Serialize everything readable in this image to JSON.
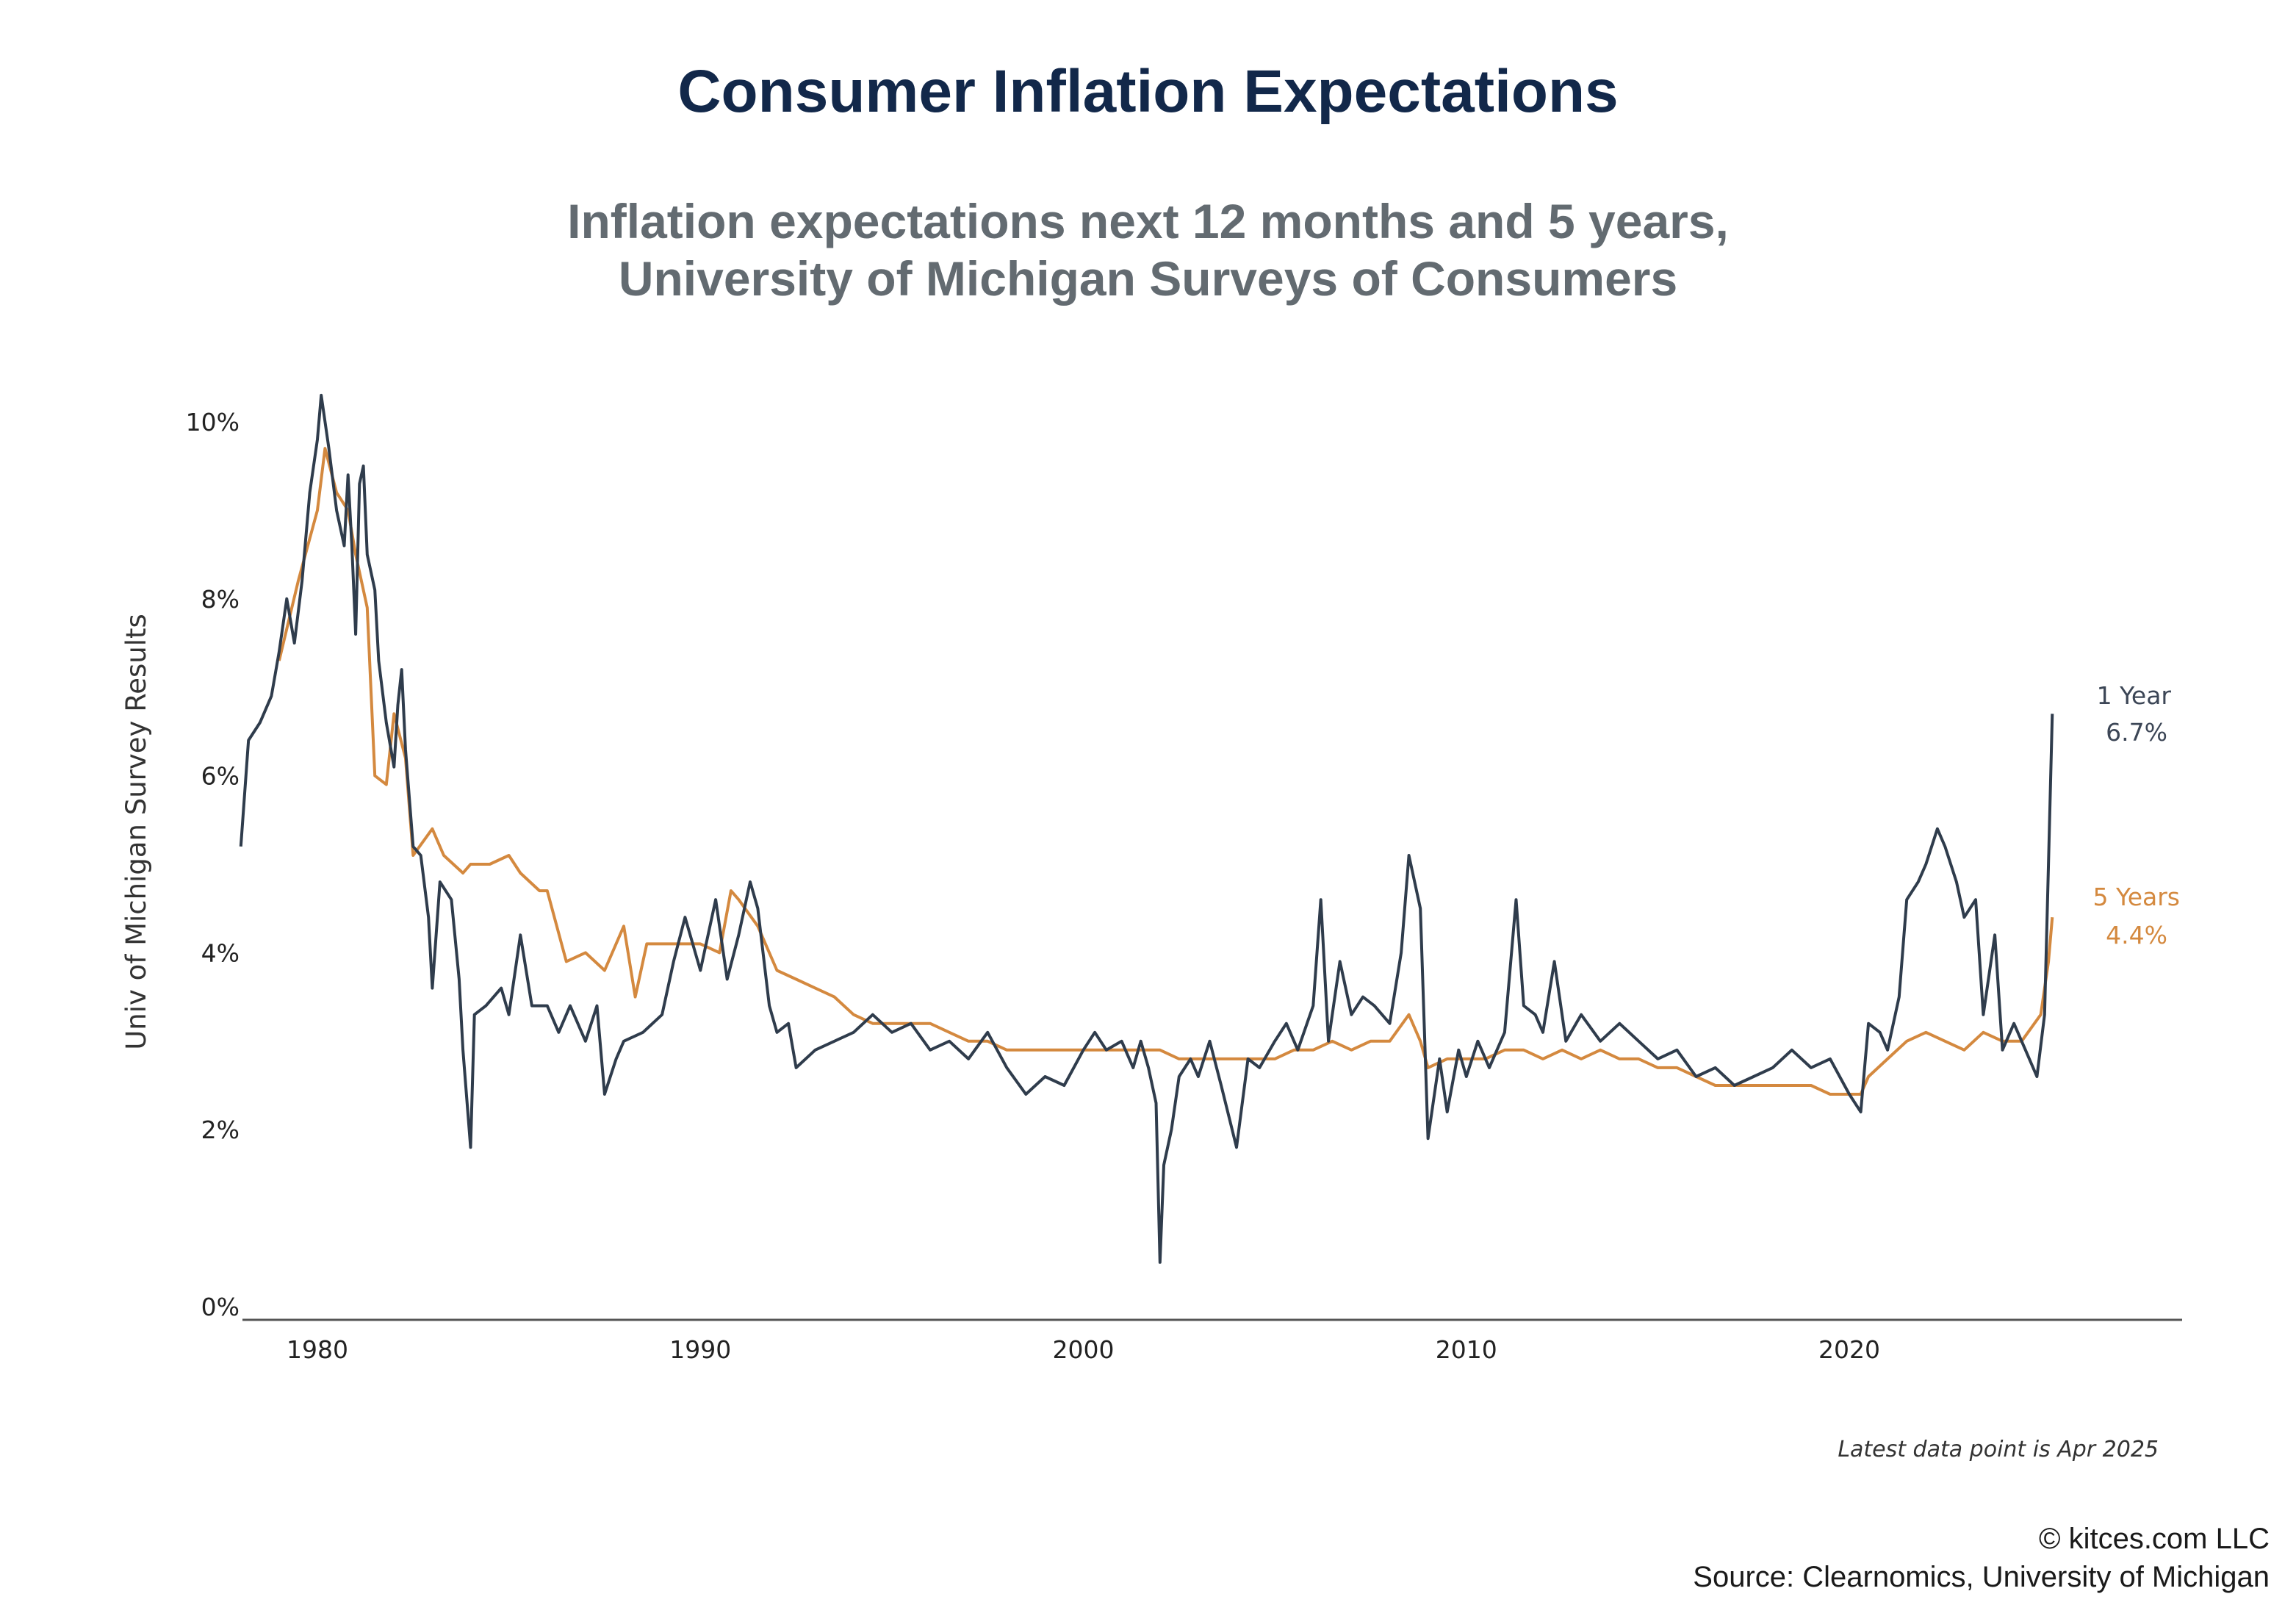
{
  "header": {
    "title": "Consumer Inflation Expectations",
    "subtitle_line1": "Inflation expectations next 12 months and 5 years,",
    "subtitle_line2": "University of Michigan Surveys of Consumers"
  },
  "footer": {
    "copyright": "© kitces.com LLC",
    "source": "Source: Clearnomics, University of Michigan"
  },
  "chart_data": {
    "type": "line",
    "title": "Consumer Inflation Expectations",
    "ylabel": "Univ of Michigan Survey Results",
    "xlabel": "",
    "x_ticks": [
      "1980",
      "1990",
      "2000",
      "2010",
      "2020"
    ],
    "y_ticks": [
      "0%",
      "2%",
      "4%",
      "6%",
      "8%",
      "10%"
    ],
    "xlim": [
      1978,
      2029
    ],
    "ylim": [
      0,
      10.4
    ],
    "grid": false,
    "note": "Latest data point is Apr 2025",
    "colors": {
      "one_year": "#2f3c4c",
      "five_years": "#d4893f"
    },
    "series": [
      {
        "key": "one_year",
        "end_label_1": "1 Year",
        "end_label_2": "6.7%",
        "points": [
          [
            1978.0,
            5.2
          ],
          [
            1978.2,
            6.4
          ],
          [
            1978.5,
            6.6
          ],
          [
            1978.8,
            6.9
          ],
          [
            1979.0,
            7.4
          ],
          [
            1979.2,
            8.0
          ],
          [
            1979.4,
            7.5
          ],
          [
            1979.6,
            8.2
          ],
          [
            1979.8,
            9.2
          ],
          [
            1980.0,
            9.8
          ],
          [
            1980.1,
            10.3
          ],
          [
            1980.3,
            9.7
          ],
          [
            1980.5,
            9.0
          ],
          [
            1980.7,
            8.6
          ],
          [
            1980.8,
            9.4
          ],
          [
            1980.9,
            8.6
          ],
          [
            1981.0,
            7.6
          ],
          [
            1981.1,
            9.3
          ],
          [
            1981.2,
            9.5
          ],
          [
            1981.3,
            8.5
          ],
          [
            1981.5,
            8.1
          ],
          [
            1981.6,
            7.3
          ],
          [
            1981.8,
            6.6
          ],
          [
            1982.0,
            6.1
          ],
          [
            1982.1,
            6.8
          ],
          [
            1982.2,
            7.2
          ],
          [
            1982.3,
            6.3
          ],
          [
            1982.5,
            5.2
          ],
          [
            1982.7,
            5.1
          ],
          [
            1982.9,
            4.4
          ],
          [
            1983.0,
            3.6
          ],
          [
            1983.2,
            4.8
          ],
          [
            1983.5,
            4.6
          ],
          [
            1983.7,
            3.7
          ],
          [
            1983.8,
            2.9
          ],
          [
            1984.0,
            1.8
          ],
          [
            1984.1,
            3.3
          ],
          [
            1984.4,
            3.4
          ],
          [
            1984.8,
            3.6
          ],
          [
            1985.0,
            3.3
          ],
          [
            1985.3,
            4.2
          ],
          [
            1985.6,
            3.4
          ],
          [
            1986.0,
            3.4
          ],
          [
            1986.3,
            3.1
          ],
          [
            1986.6,
            3.4
          ],
          [
            1987.0,
            3.0
          ],
          [
            1987.3,
            3.4
          ],
          [
            1987.5,
            2.4
          ],
          [
            1987.8,
            2.8
          ],
          [
            1988.0,
            3.0
          ],
          [
            1988.5,
            3.1
          ],
          [
            1989.0,
            3.3
          ],
          [
            1989.3,
            3.9
          ],
          [
            1989.6,
            4.4
          ],
          [
            1990.0,
            3.8
          ],
          [
            1990.4,
            4.6
          ],
          [
            1990.7,
            3.7
          ],
          [
            1991.0,
            4.2
          ],
          [
            1991.3,
            4.8
          ],
          [
            1991.5,
            4.5
          ],
          [
            1991.8,
            3.4
          ],
          [
            1992.0,
            3.1
          ],
          [
            1992.3,
            3.2
          ],
          [
            1992.5,
            2.7
          ],
          [
            1993.0,
            2.9
          ],
          [
            1993.5,
            3.0
          ],
          [
            1994.0,
            3.1
          ],
          [
            1994.5,
            3.3
          ],
          [
            1995.0,
            3.1
          ],
          [
            1995.5,
            3.2
          ],
          [
            1996.0,
            2.9
          ],
          [
            1996.5,
            3.0
          ],
          [
            1997.0,
            2.8
          ],
          [
            1997.5,
            3.1
          ],
          [
            1998.0,
            2.7
          ],
          [
            1998.5,
            2.4
          ],
          [
            1999.0,
            2.6
          ],
          [
            1999.5,
            2.5
          ],
          [
            2000.0,
            2.9
          ],
          [
            2000.3,
            3.1
          ],
          [
            2000.6,
            2.9
          ],
          [
            2001.0,
            3.0
          ],
          [
            2001.3,
            2.7
          ],
          [
            2001.5,
            3.0
          ],
          [
            2001.7,
            2.7
          ],
          [
            2001.9,
            2.3
          ],
          [
            2002.0,
            0.5
          ],
          [
            2002.1,
            1.6
          ],
          [
            2002.3,
            2.0
          ],
          [
            2002.5,
            2.6
          ],
          [
            2002.8,
            2.8
          ],
          [
            2003.0,
            2.6
          ],
          [
            2003.3,
            3.0
          ],
          [
            2003.6,
            2.5
          ],
          [
            2004.0,
            1.8
          ],
          [
            2004.3,
            2.8
          ],
          [
            2004.6,
            2.7
          ],
          [
            2005.0,
            3.0
          ],
          [
            2005.3,
            3.2
          ],
          [
            2005.6,
            2.9
          ],
          [
            2006.0,
            3.4
          ],
          [
            2006.2,
            4.6
          ],
          [
            2006.4,
            3.0
          ],
          [
            2006.7,
            3.9
          ],
          [
            2007.0,
            3.3
          ],
          [
            2007.3,
            3.5
          ],
          [
            2007.6,
            3.4
          ],
          [
            2008.0,
            3.2
          ],
          [
            2008.3,
            4.0
          ],
          [
            2008.5,
            5.1
          ],
          [
            2008.8,
            4.5
          ],
          [
            2009.0,
            1.9
          ],
          [
            2009.3,
            2.8
          ],
          [
            2009.5,
            2.2
          ],
          [
            2009.8,
            2.9
          ],
          [
            2010.0,
            2.6
          ],
          [
            2010.3,
            3.0
          ],
          [
            2010.6,
            2.7
          ],
          [
            2011.0,
            3.1
          ],
          [
            2011.3,
            4.6
          ],
          [
            2011.5,
            3.4
          ],
          [
            2011.8,
            3.3
          ],
          [
            2012.0,
            3.1
          ],
          [
            2012.3,
            3.9
          ],
          [
            2012.6,
            3.0
          ],
          [
            2013.0,
            3.3
          ],
          [
            2013.5,
            3.0
          ],
          [
            2014.0,
            3.2
          ],
          [
            2014.5,
            3.0
          ],
          [
            2015.0,
            2.8
          ],
          [
            2015.5,
            2.9
          ],
          [
            2016.0,
            2.6
          ],
          [
            2016.5,
            2.7
          ],
          [
            2017.0,
            2.5
          ],
          [
            2017.5,
            2.6
          ],
          [
            2018.0,
            2.7
          ],
          [
            2018.5,
            2.9
          ],
          [
            2019.0,
            2.7
          ],
          [
            2019.5,
            2.8
          ],
          [
            2020.0,
            2.4
          ],
          [
            2020.3,
            2.2
          ],
          [
            2020.5,
            3.2
          ],
          [
            2020.8,
            3.1
          ],
          [
            2021.0,
            2.9
          ],
          [
            2021.3,
            3.5
          ],
          [
            2021.5,
            4.6
          ],
          [
            2021.8,
            4.8
          ],
          [
            2022.0,
            5.0
          ],
          [
            2022.3,
            5.4
          ],
          [
            2022.5,
            5.2
          ],
          [
            2022.8,
            4.8
          ],
          [
            2023.0,
            4.4
          ],
          [
            2023.3,
            4.6
          ],
          [
            2023.5,
            3.3
          ],
          [
            2023.8,
            4.2
          ],
          [
            2024.0,
            2.9
          ],
          [
            2024.3,
            3.2
          ],
          [
            2024.6,
            2.9
          ],
          [
            2024.9,
            2.6
          ],
          [
            2025.1,
            3.3
          ],
          [
            2025.2,
            5.0
          ],
          [
            2025.3,
            6.7
          ]
        ]
      },
      {
        "key": "five_years",
        "end_label_1": "5 Years",
        "end_label_2": "4.4%",
        "points": [
          [
            1979.0,
            7.3
          ],
          [
            1979.5,
            8.2
          ],
          [
            1980.0,
            9.0
          ],
          [
            1980.2,
            9.7
          ],
          [
            1980.5,
            9.2
          ],
          [
            1980.8,
            9.0
          ],
          [
            1981.0,
            8.5
          ],
          [
            1981.3,
            7.9
          ],
          [
            1981.5,
            6.0
          ],
          [
            1981.8,
            5.9
          ],
          [
            1982.0,
            6.7
          ],
          [
            1982.3,
            6.2
          ],
          [
            1982.5,
            5.1
          ],
          [
            1983.0,
            5.4
          ],
          [
            1983.3,
            5.1
          ],
          [
            1983.8,
            4.9
          ],
          [
            1984.0,
            5.0
          ],
          [
            1984.5,
            5.0
          ],
          [
            1985.0,
            5.1
          ],
          [
            1985.3,
            4.9
          ],
          [
            1985.8,
            4.7
          ],
          [
            1986.0,
            4.7
          ],
          [
            1986.5,
            3.9
          ],
          [
            1987.0,
            4.0
          ],
          [
            1987.5,
            3.8
          ],
          [
            1988.0,
            4.3
          ],
          [
            1988.3,
            3.5
          ],
          [
            1988.6,
            4.1
          ],
          [
            1989.0,
            4.1
          ],
          [
            1990.0,
            4.1
          ],
          [
            1990.5,
            4.0
          ],
          [
            1990.8,
            4.7
          ],
          [
            1991.0,
            4.6
          ],
          [
            1991.5,
            4.3
          ],
          [
            1992.0,
            3.8
          ],
          [
            1992.5,
            3.7
          ],
          [
            1993.0,
            3.6
          ],
          [
            1993.5,
            3.5
          ],
          [
            1994.0,
            3.3
          ],
          [
            1994.5,
            3.2
          ],
          [
            1995.0,
            3.2
          ],
          [
            1995.5,
            3.2
          ],
          [
            1996.0,
            3.2
          ],
          [
            1996.5,
            3.1
          ],
          [
            1997.0,
            3.0
          ],
          [
            1997.5,
            3.0
          ],
          [
            1998.0,
            2.9
          ],
          [
            1998.5,
            2.9
          ],
          [
            1999.0,
            2.9
          ],
          [
            1999.5,
            2.9
          ],
          [
            2000.0,
            2.9
          ],
          [
            2000.5,
            2.9
          ],
          [
            2001.0,
            2.9
          ],
          [
            2001.5,
            2.9
          ],
          [
            2002.0,
            2.9
          ],
          [
            2002.5,
            2.8
          ],
          [
            2003.0,
            2.8
          ],
          [
            2003.5,
            2.8
          ],
          [
            2004.0,
            2.8
          ],
          [
            2004.5,
            2.8
          ],
          [
            2005.0,
            2.8
          ],
          [
            2005.5,
            2.9
          ],
          [
            2006.0,
            2.9
          ],
          [
            2006.5,
            3.0
          ],
          [
            2007.0,
            2.9
          ],
          [
            2007.5,
            3.0
          ],
          [
            2008.0,
            3.0
          ],
          [
            2008.5,
            3.3
          ],
          [
            2008.8,
            3.0
          ],
          [
            2009.0,
            2.7
          ],
          [
            2009.5,
            2.8
          ],
          [
            2010.0,
            2.8
          ],
          [
            2010.5,
            2.8
          ],
          [
            2011.0,
            2.9
          ],
          [
            2011.5,
            2.9
          ],
          [
            2012.0,
            2.8
          ],
          [
            2012.5,
            2.9
          ],
          [
            2013.0,
            2.8
          ],
          [
            2013.5,
            2.9
          ],
          [
            2014.0,
            2.8
          ],
          [
            2014.5,
            2.8
          ],
          [
            2015.0,
            2.7
          ],
          [
            2015.5,
            2.7
          ],
          [
            2016.0,
            2.6
          ],
          [
            2016.5,
            2.5
          ],
          [
            2017.0,
            2.5
          ],
          [
            2017.5,
            2.5
          ],
          [
            2018.0,
            2.5
          ],
          [
            2018.5,
            2.5
          ],
          [
            2019.0,
            2.5
          ],
          [
            2019.5,
            2.4
          ],
          [
            2020.0,
            2.4
          ],
          [
            2020.3,
            2.4
          ],
          [
            2020.5,
            2.6
          ],
          [
            2021.0,
            2.8
          ],
          [
            2021.5,
            3.0
          ],
          [
            2022.0,
            3.1
          ],
          [
            2022.5,
            3.0
          ],
          [
            2023.0,
            2.9
          ],
          [
            2023.5,
            3.1
          ],
          [
            2024.0,
            3.0
          ],
          [
            2024.5,
            3.0
          ],
          [
            2025.0,
            3.3
          ],
          [
            2025.2,
            3.9
          ],
          [
            2025.3,
            4.4
          ]
        ]
      }
    ]
  }
}
